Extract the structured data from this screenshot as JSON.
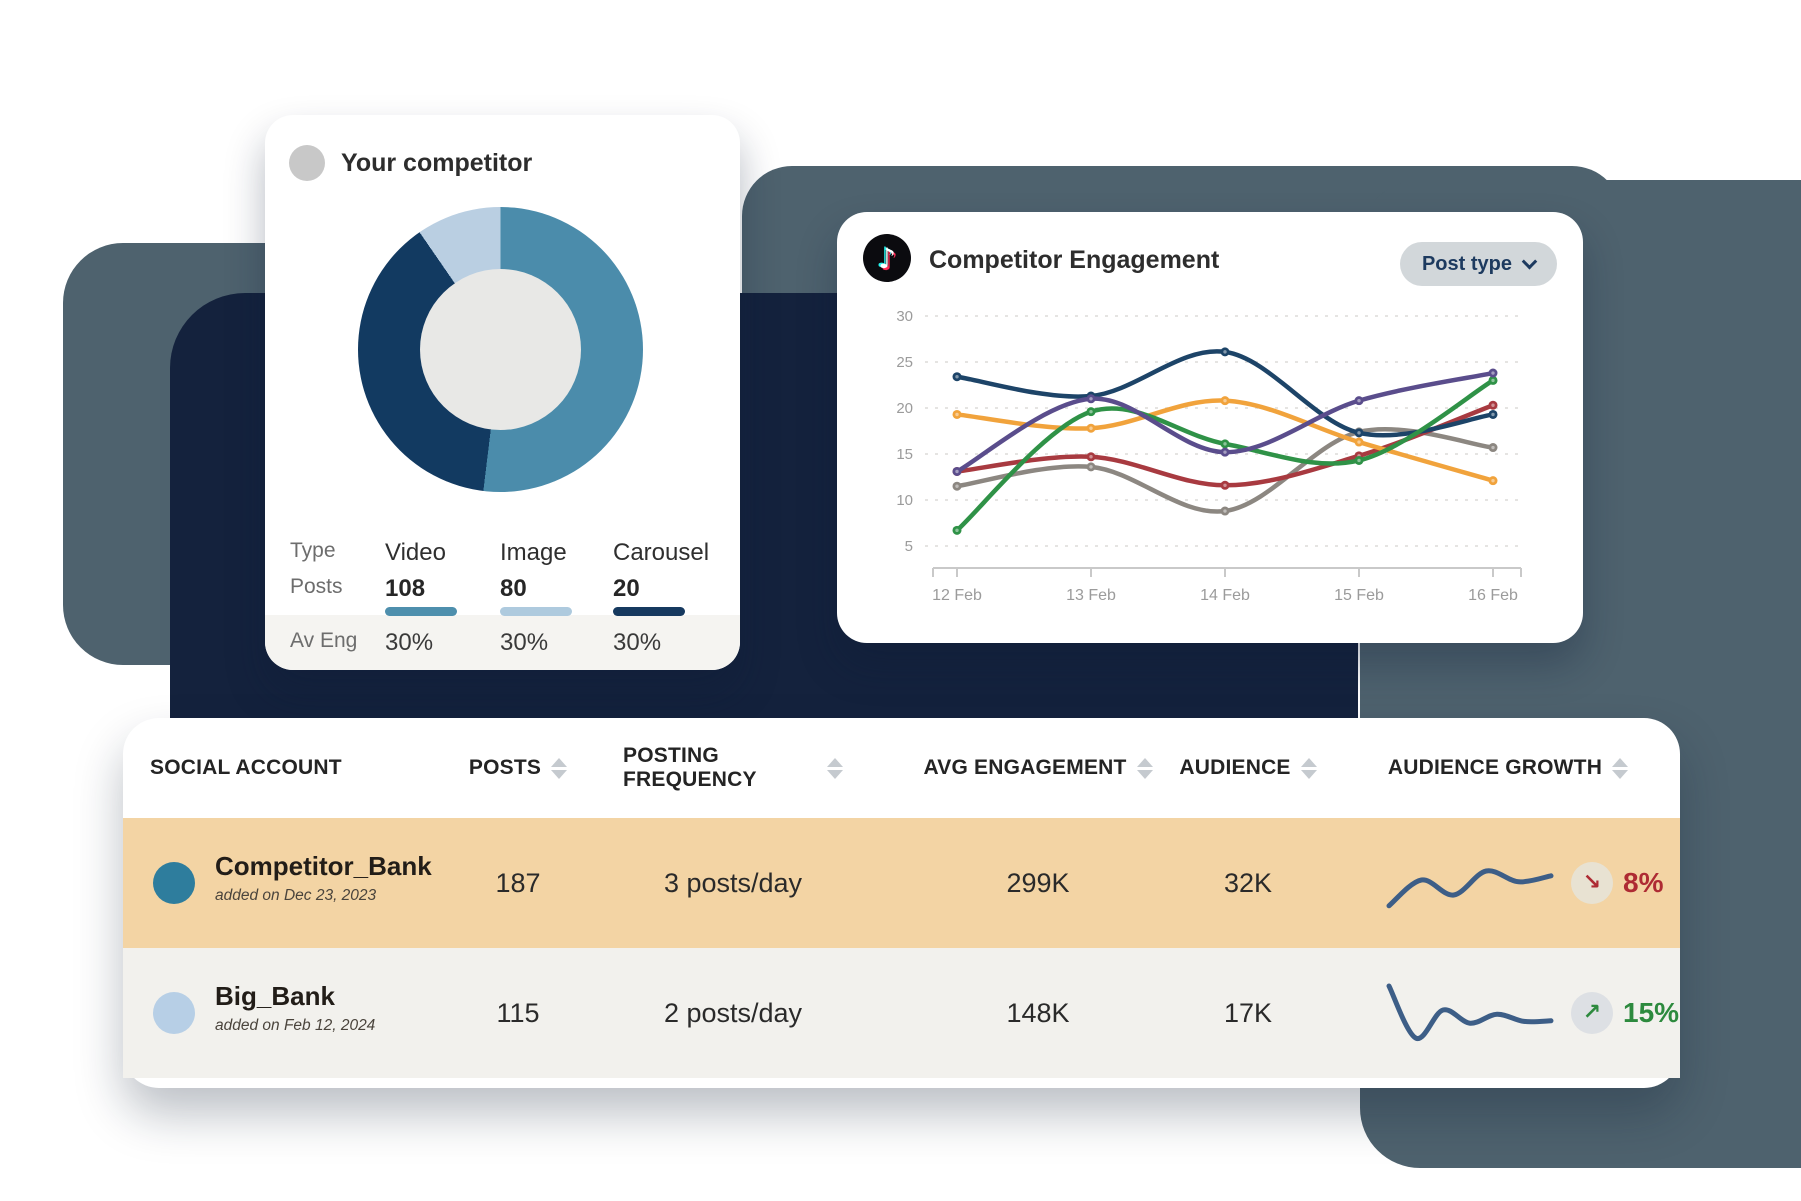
{
  "colors": {
    "page_bg": "#ffffff",
    "navy_shape": "#14223d",
    "slate_shape": "#4e626e",
    "donut_hole": "#e8e8e6",
    "competitor_avatar_gray": "#c8c8c8",
    "aveng_band": "#f5f4f1",
    "sparkline": "#3d5e87",
    "sort_icon": "#c5cacf"
  },
  "competitor_card": {
    "title": "Your competitor",
    "stats": {
      "row_labels": {
        "type": "Type",
        "posts": "Posts",
        "av_eng": "Av Eng"
      },
      "columns": [
        {
          "type": "Video",
          "posts": "108",
          "av_eng": "30%",
          "bar_color": "#4e8fad"
        },
        {
          "type": "Image",
          "posts": "80",
          "av_eng": "30%",
          "bar_color": "#aecade"
        },
        {
          "type": "Carousel",
          "posts": "20",
          "av_eng": "30%",
          "bar_color": "#16395f"
        }
      ]
    }
  },
  "engagement_card": {
    "title": "Competitor Engagement",
    "icon": "tiktok-logo",
    "icon_glyph": "♪",
    "dropdown_label": "Post type"
  },
  "accounts_table": {
    "headers": {
      "social_account": "SOCIAL ACCOUNT",
      "posts": "POSTS",
      "posting_frequency": "POSTING FREQUENCY",
      "avg_engagement": "AVG ENGAGEMENT",
      "audience": "AUDIENCE",
      "audience_growth": "AUDIENCE GROWTH"
    },
    "rows": [
      {
        "name": "Competitor_Bank",
        "added": "added on Dec 23, 2023",
        "posts": "187",
        "frequency": "3 posts/day",
        "avg_engagement": "299K",
        "audience": "32K",
        "growth": "8%",
        "growth_arrow": "↘",
        "growth_color": "#ae2b33",
        "badge_bg": "#e8e2d2",
        "avatar_color": "#2e7d9d",
        "row_bg": "#f3d4a4",
        "sparkline": [
          12,
          55,
          30,
          70,
          52,
          62
        ]
      },
      {
        "name": "Big_Bank",
        "added": "added on Feb 12, 2024",
        "posts": "115",
        "frequency": "2 posts/day",
        "avg_engagement": "148K",
        "audience": "17K",
        "growth": "15%",
        "growth_arrow": "↗",
        "growth_color": "#2d8a3e",
        "badge_bg": "#dde0e4",
        "avatar_color": "#b7cfe6",
        "row_bg": "#f2f1ed",
        "sparkline": [
          95,
          8,
          55,
          33,
          48,
          36,
          37
        ]
      }
    ]
  },
  "chart_data": [
    {
      "type": "line",
      "title": "Competitor Engagement",
      "x": [
        "12 Feb",
        "13 Feb",
        "14 Feb",
        "15 Feb",
        "16 Feb"
      ],
      "ylim": [
        0,
        30
      ],
      "yticks": [
        5,
        10,
        15,
        20,
        25,
        30
      ],
      "grid": "horizontal-dashed",
      "legend": "none",
      "series": [
        {
          "name": "navy",
          "color": "#1d4468",
          "values": [
            23.4,
            21.3,
            26.1,
            17.3,
            19.3
          ]
        },
        {
          "name": "orange",
          "color": "#f1a33c",
          "values": [
            19.3,
            17.8,
            20.8,
            16.3,
            12.1
          ]
        },
        {
          "name": "purple",
          "color": "#5a4d8c",
          "values": [
            13.1,
            21.0,
            15.2,
            20.8,
            23.8
          ]
        },
        {
          "name": "green",
          "color": "#2f9247",
          "values": [
            6.7,
            19.6,
            16.1,
            14.3,
            23.0
          ]
        },
        {
          "name": "red",
          "color": "#a83a40",
          "values": [
            13.1,
            14.7,
            11.6,
            14.8,
            20.3
          ]
        },
        {
          "name": "gray",
          "color": "#8c8781",
          "values": [
            11.5,
            13.6,
            8.8,
            17.4,
            15.7
          ]
        }
      ]
    },
    {
      "type": "donut",
      "title": "Your competitor",
      "categories": [
        "Video",
        "Image",
        "Carousel"
      ],
      "values": [
        108,
        80,
        20
      ],
      "colors": [
        "#4b8cab",
        "#123a61",
        "#bacfe2"
      ],
      "start_angle_deg": 0
    }
  ]
}
